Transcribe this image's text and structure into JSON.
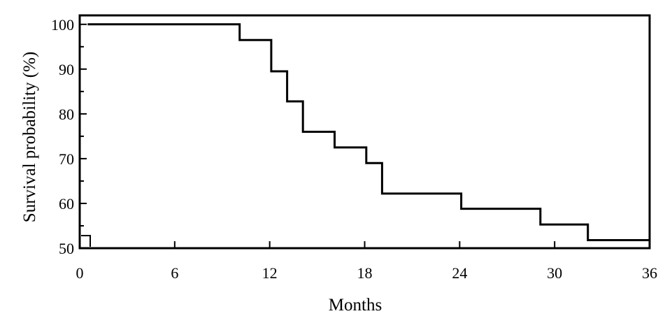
{
  "chart_data": {
    "type": "line",
    "subtype": "kaplan-meier-step",
    "title": "",
    "xlabel": "Months",
    "ylabel": "Survival probability (%)",
    "xlim": [
      0,
      36
    ],
    "ylim": [
      50,
      102
    ],
    "x_ticks": [
      0,
      6,
      12,
      18,
      24,
      30,
      36
    ],
    "y_ticks": [
      50,
      60,
      70,
      80,
      90,
      100
    ],
    "x_tick_labels": [
      "0",
      "6",
      "12",
      "18",
      "24",
      "30",
      "36"
    ],
    "y_tick_labels": [
      "50",
      "60",
      "70",
      "80",
      "90",
      "100"
    ],
    "grid": false,
    "legend": "none",
    "series": [
      {
        "x": [
          0.5,
          10.1,
          10.1,
          12.1,
          12.1,
          13.1,
          13.1,
          14.1,
          14.1,
          16.1,
          16.1,
          18.1,
          18.1,
          19.1,
          19.1,
          24.1,
          24.1,
          29.1,
          29.1,
          32.1,
          32.1,
          36
        ],
        "y": [
          100,
          100,
          96.5,
          96.5,
          89.5,
          89.5,
          82.8,
          82.8,
          76.0,
          76.0,
          72.5,
          72.5,
          69.0,
          69.0,
          62.2,
          62.2,
          58.8,
          58.8,
          55.3,
          55.3,
          51.8,
          51.8
        ]
      }
    ],
    "color": "#000000"
  }
}
